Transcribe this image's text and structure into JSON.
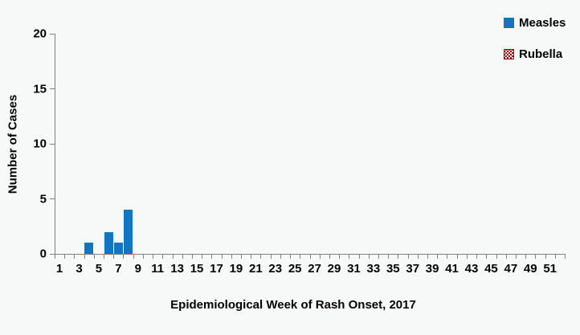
{
  "chart_data": {
    "type": "bar",
    "title": "",
    "xlabel": "Epidemiological Week of Rash Onset, 2017",
    "ylabel": "Number of Cases",
    "x_axis": {
      "weeks": 52,
      "tick_labels": [
        "1",
        "3",
        "5",
        "7",
        "9",
        "11",
        "13",
        "15",
        "17",
        "19",
        "21",
        "23",
        "25",
        "27",
        "29",
        "31",
        "33",
        "35",
        "37",
        "39",
        "41",
        "43",
        "45",
        "47",
        "49",
        "51"
      ]
    },
    "y_axis": {
      "min": 0,
      "max": 20,
      "tick_labels": [
        "0",
        "5",
        "10",
        "15",
        "20"
      ]
    },
    "series": [
      {
        "name": "Measles",
        "color": "#1375be",
        "fill": "solid",
        "points": [
          {
            "week": 4,
            "cases": 1
          },
          {
            "week": 6,
            "cases": 2
          },
          {
            "week": 7,
            "cases": 1
          },
          {
            "week": 8,
            "cases": 4
          }
        ]
      },
      {
        "name": "Rubella",
        "color": "#c00000",
        "fill": "dotted-pattern",
        "points": []
      }
    ],
    "legend_position": "top-right",
    "grid": false
  },
  "colors": {
    "background": "#f7f8f8",
    "axis": "#808080",
    "text": "#000000"
  }
}
